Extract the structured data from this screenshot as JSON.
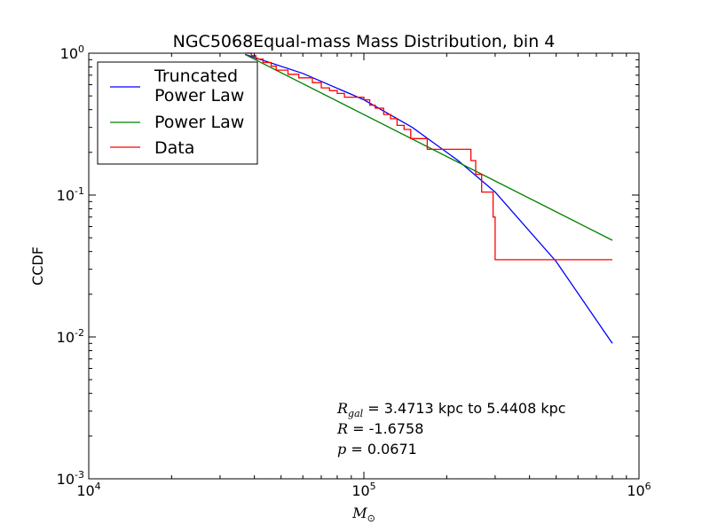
{
  "chart_data": {
    "type": "line",
    "title": "NGC5068Equal-mass Mass Distribution, bin 4",
    "xlabel": {
      "symbol": "M",
      "subscript": "⊙"
    },
    "ylabel": "CCDF",
    "xscale": "log",
    "yscale": "log",
    "xlim": [
      10000,
      1000000
    ],
    "ylim": [
      0.001,
      1
    ],
    "x_ticks": [
      {
        "base": "10",
        "exp": "4",
        "value": 10000
      },
      {
        "base": "10",
        "exp": "5",
        "value": 100000
      },
      {
        "base": "10",
        "exp": "6",
        "value": 1000000
      }
    ],
    "y_ticks": [
      {
        "base": "10",
        "exp": "0",
        "value": 1
      },
      {
        "base": "10",
        "exp": "-1",
        "value": 0.1
      },
      {
        "base": "10",
        "exp": "-2",
        "value": 0.01
      },
      {
        "base": "10",
        "exp": "-3",
        "value": 0.001
      }
    ],
    "grid": false,
    "legend_position": "top-left",
    "series": [
      {
        "name": "Truncated\nPower Law",
        "color": "#0000ff",
        "kind": "line",
        "x": [
          37000,
          60000,
          100000,
          150000,
          220000,
          300000,
          500000,
          800000
        ],
        "y": [
          0.98,
          0.72,
          0.47,
          0.3,
          0.175,
          0.105,
          0.034,
          0.009
        ]
      },
      {
        "name": "Power Law",
        "color": "#008000",
        "kind": "line",
        "x": [
          37000,
          800000
        ],
        "y": [
          0.98,
          0.048
        ]
      },
      {
        "name": "Data",
        "color": "#ff0000",
        "kind": "step",
        "x": [
          37000,
          39000,
          40500,
          43000,
          46000,
          48000,
          53000,
          58000,
          65000,
          70000,
          75000,
          80000,
          85000,
          90000,
          100000,
          105000,
          110000,
          118000,
          125000,
          132000,
          140000,
          148000,
          170000,
          245000,
          255000,
          268000,
          295000,
          300000,
          800000
        ],
        "y": [
          1.0,
          0.96,
          0.91,
          0.86,
          0.81,
          0.76,
          0.71,
          0.67,
          0.62,
          0.57,
          0.545,
          0.52,
          0.49,
          0.49,
          0.47,
          0.43,
          0.41,
          0.37,
          0.345,
          0.31,
          0.29,
          0.25,
          0.21,
          0.175,
          0.14,
          0.105,
          0.07,
          0.035,
          0.035
        ]
      }
    ],
    "annotations": [
      {
        "symbol": "R",
        "subscript": "gal",
        "text": " = 3.4713 kpc to 5.4408 kpc"
      },
      {
        "symbol": "R",
        "subscript": "",
        "text": " = -1.6758"
      },
      {
        "symbol": "p",
        "subscript": "",
        "text": " = 0.0671"
      }
    ]
  }
}
